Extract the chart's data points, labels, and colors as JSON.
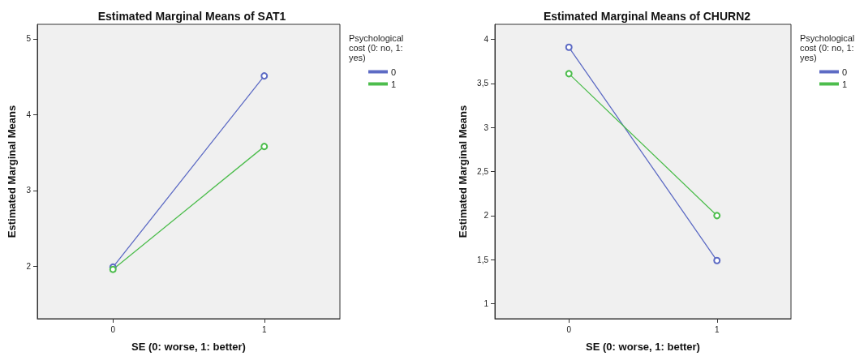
{
  "chart_data": [
    {
      "type": "line",
      "title": "Estimated Marginal Means of SAT1",
      "xlabel": "SE (0: worse, 1: better)",
      "ylabel": "Estimated Marginal Means",
      "legend_title": "Psychological cost (0: no, 1: yes)",
      "categories": [
        "0",
        "1"
      ],
      "ylim": [
        1.31,
        5.19
      ],
      "yticks": [
        2,
        3,
        4,
        5
      ],
      "grid": false,
      "legend": "top right",
      "marker": "circle",
      "line_style": "solid",
      "series": [
        {
          "name": "0",
          "color": "#5d6bc4",
          "values": [
            1.99,
            4.51
          ]
        },
        {
          "name": "1",
          "color": "#4dbd4d",
          "values": [
            1.96,
            3.58
          ]
        }
      ]
    },
    {
      "type": "line",
      "title": "Estimated Marginal Means of CHURN2",
      "xlabel": "SE (0: worse, 1: better)",
      "ylabel": "Estimated Marginal Means",
      "legend_title": "Psychological cost (0: no, 1: yes)",
      "categories": [
        "0",
        "1"
      ],
      "ylim": [
        0.83,
        4.17
      ],
      "yticks": [
        1,
        {
          "value": 1.5,
          "label": "1,5"
        },
        2,
        {
          "value": 2.5,
          "label": "2,5"
        },
        3,
        {
          "value": 3.5,
          "label": "3,5"
        },
        4
      ],
      "grid": false,
      "legend": "top right",
      "marker": "circle",
      "line_style": "solid",
      "series": [
        {
          "name": "0",
          "color": "#5d6bc4",
          "values": [
            3.91,
            1.49
          ]
        },
        {
          "name": "1",
          "color": "#4dbd4d",
          "values": [
            3.61,
            2.0
          ]
        }
      ]
    }
  ]
}
